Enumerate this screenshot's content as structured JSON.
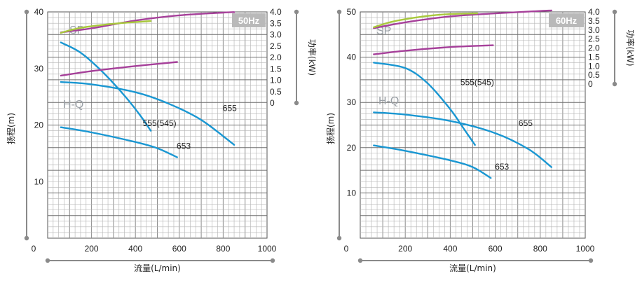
{
  "chart_data": [
    {
      "type": "line",
      "badge": "50Hz",
      "xlabel": "流量(L/min)",
      "ylabel": "扬程(m)",
      "y2label": "功率(kW)",
      "xlim": [
        0,
        1000
      ],
      "ylim": [
        0,
        40
      ],
      "y2lim": [
        0,
        4.0
      ],
      "xticks": [
        0,
        200,
        400,
        600,
        800,
        1000
      ],
      "yticks": [
        10,
        20,
        30,
        40
      ],
      "y_zero_label": "0",
      "y2ticks": [
        0,
        0.5,
        1.0,
        1.5,
        2.0,
        2.5,
        3.0,
        3.5,
        4.0
      ],
      "y2ticklabels": [
        "0",
        "0.5",
        "1.0",
        "1.5",
        "2.0",
        "2.5",
        "3.0",
        "3.5",
        "4.0"
      ],
      "region_labels": {
        "sp": "SP",
        "hq": "H-Q"
      },
      "grid": true,
      "series": [
        {
          "name": "655",
          "group": "hq",
          "color": "#1a97d2",
          "label_at": [
            830,
            22.5
          ],
          "x": [
            60,
            200,
            400,
            550,
            700,
            850
          ],
          "y": [
            27.6,
            27.2,
            25.8,
            23.8,
            20.9,
            16.5
          ]
        },
        {
          "name": "555(545)",
          "group": "hq",
          "color": "#1a97d2",
          "label_at": [
            510,
            19.8
          ],
          "x": [
            60,
            150,
            250,
            350,
            420,
            470
          ],
          "y": [
            34.6,
            32.8,
            29.4,
            25.2,
            21.8,
            19.0
          ]
        },
        {
          "name": "653",
          "group": "hq",
          "color": "#1a97d2",
          "label_at": [
            620,
            15.8
          ],
          "x": [
            60,
            200,
            400,
            500,
            590
          ],
          "y": [
            19.6,
            18.7,
            17.0,
            15.9,
            14.3
          ]
        },
        {
          "name": "",
          "group": "sp",
          "axis": "y2",
          "color": "#a6409a",
          "x": [
            60,
            200,
            400,
            600,
            800,
            850
          ],
          "y": [
            3.1,
            3.28,
            3.62,
            3.85,
            3.97,
            3.99
          ]
        },
        {
          "name": "",
          "group": "sp",
          "axis": "y2",
          "color": "#a6409a",
          "x": [
            60,
            200,
            400,
            590
          ],
          "y": [
            1.2,
            1.4,
            1.62,
            1.8
          ]
        },
        {
          "name": "",
          "group": "sp",
          "axis": "y2",
          "color": "#a8c83c",
          "x": [
            60,
            150,
            300,
            470
          ],
          "y": [
            3.08,
            3.3,
            3.48,
            3.6
          ]
        }
      ]
    },
    {
      "type": "line",
      "badge": "60Hz",
      "xlabel": "流量(L/min)",
      "ylabel": "扬程(m)",
      "y2label": "功率(kW)",
      "xlim": [
        0,
        1000
      ],
      "ylim": [
        0,
        50
      ],
      "y2lim": [
        0,
        4.0
      ],
      "xticks": [
        0,
        200,
        400,
        600,
        800,
        1000
      ],
      "yticks": [
        10,
        20,
        30,
        40,
        50
      ],
      "y_zero_label": "0",
      "y2ticks": [
        0,
        0.5,
        1.0,
        1.5,
        2.0,
        2.5,
        3.0,
        3.5,
        4.0
      ],
      "y2ticklabels": [
        "0",
        "0.5",
        "1.0",
        "1.5",
        "2.0",
        "2.5",
        "3.0",
        "3.5",
        "4.0"
      ],
      "region_labels": {
        "sp": "SP",
        "hq": "H-Q"
      },
      "grid": true,
      "series": [
        {
          "name": "655",
          "group": "hq",
          "color": "#1a97d2",
          "label_at": [
            735,
            24.8
          ],
          "x": [
            60,
            200,
            400,
            600,
            750,
            850
          ],
          "y": [
            27.8,
            27.3,
            25.9,
            23.2,
            19.6,
            15.7
          ]
        },
        {
          "name": "555(545)",
          "group": "hq",
          "color": "#1a97d2",
          "label_at": [
            520,
            33.8
          ],
          "x": [
            60,
            200,
            300,
            400,
            460,
            510
          ],
          "y": [
            38.8,
            37.6,
            34.2,
            28.5,
            24.2,
            20.6
          ]
        },
        {
          "name": "653",
          "group": "hq",
          "color": "#1a97d2",
          "label_at": [
            630,
            15.2
          ],
          "x": [
            60,
            200,
            400,
            500,
            580
          ],
          "y": [
            20.5,
            19.3,
            17.2,
            15.7,
            13.3
          ]
        },
        {
          "name": "",
          "group": "sp",
          "axis": "y2",
          "color": "#a6409a",
          "x": [
            60,
            200,
            400,
            600,
            800,
            850
          ],
          "y": [
            3.1,
            3.42,
            3.75,
            3.92,
            4.05,
            4.08
          ]
        },
        {
          "name": "",
          "group": "sp",
          "axis": "y2",
          "color": "#a6409a",
          "x": [
            60,
            200,
            400,
            590
          ],
          "y": [
            1.65,
            1.85,
            2.05,
            2.15
          ]
        },
        {
          "name": "",
          "group": "sp",
          "axis": "y2",
          "color": "#a8c83c",
          "x": [
            60,
            150,
            300,
            400,
            520
          ],
          "y": [
            3.15,
            3.48,
            3.78,
            3.88,
            3.92
          ]
        }
      ]
    }
  ]
}
